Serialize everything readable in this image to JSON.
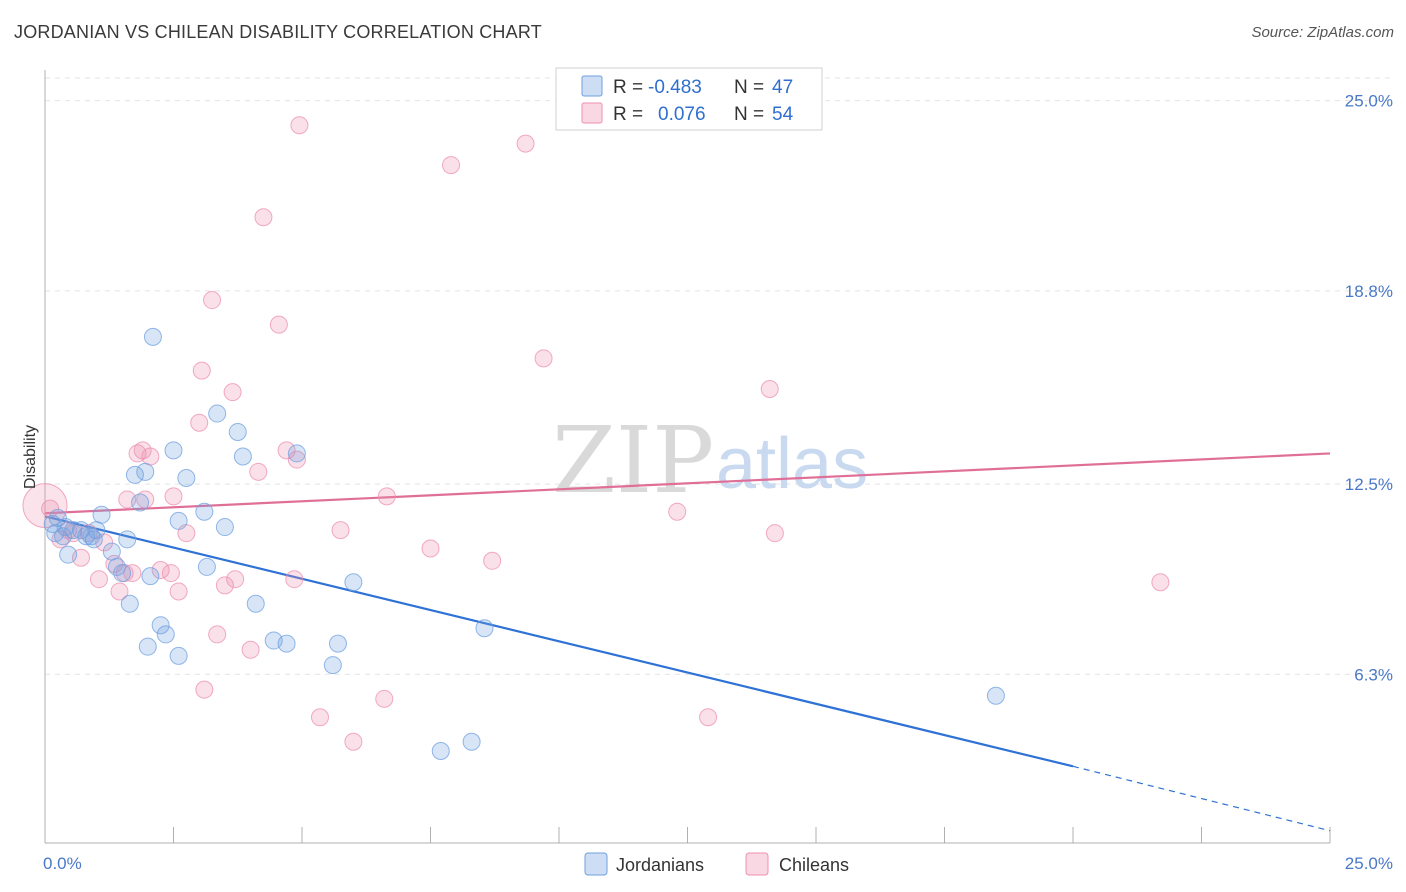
{
  "header": {
    "title": "JORDANIAN VS CHILEAN DISABILITY CORRELATION CHART",
    "source": "Source: ZipAtlas.com"
  },
  "watermark": {
    "zip": "ZIP",
    "atlas": "atlas"
  },
  "legend": {
    "rows": [
      {
        "r_label": "R =",
        "r_value": "-0.483",
        "n_label": "N =",
        "n_value": "47",
        "color": "#6fa0e0"
      },
      {
        "r_label": "R =",
        "r_value": "0.076",
        "n_label": "N =",
        "n_value": "54",
        "color": "#ee8fb0"
      }
    ]
  },
  "bottom_legend": {
    "items": [
      {
        "label": "Jordanians",
        "color": "#6fa0e0"
      },
      {
        "label": "Chileans",
        "color": "#ee8fb0"
      }
    ]
  },
  "chart_data": {
    "type": "scatter",
    "title": "JORDANIAN VS CHILEAN DISABILITY CORRELATION CHART",
    "xlabel": "",
    "ylabel": "Disability",
    "xlim": [
      0,
      25
    ],
    "ylim": [
      0.8,
      26
    ],
    "x_tick_labels": [
      "0.0%",
      "25.0%"
    ],
    "y_ticks": [
      6.3,
      12.5,
      18.8,
      25.0
    ],
    "y_tick_labels": [
      "6.3%",
      "12.5%",
      "18.8%",
      "25.0%"
    ],
    "grid": "horizontal dashed",
    "legend_position": "top-center",
    "series": [
      {
        "name": "Jordanians",
        "color": "#6fa0e0",
        "r": -0.483,
        "n": 47,
        "trend": {
          "x": [
            0,
            20,
            25
          ],
          "y": [
            11.45,
            3.3,
            1.2
          ],
          "dashed_from": 20
        },
        "points": [
          [
            0.15,
            11.2
          ],
          [
            0.2,
            10.9
          ],
          [
            0.25,
            11.4
          ],
          [
            0.35,
            10.8
          ],
          [
            0.4,
            11.1
          ],
          [
            0.45,
            10.2
          ],
          [
            0.55,
            11.0
          ],
          [
            0.7,
            11.0
          ],
          [
            0.8,
            10.8
          ],
          [
            0.9,
            10.8
          ],
          [
            0.95,
            10.7
          ],
          [
            1.0,
            11.0
          ],
          [
            1.1,
            11.5
          ],
          [
            1.3,
            10.3
          ],
          [
            1.4,
            9.8
          ],
          [
            1.5,
            9.6
          ],
          [
            1.6,
            10.7
          ],
          [
            1.65,
            8.6
          ],
          [
            1.75,
            12.8
          ],
          [
            1.85,
            11.9
          ],
          [
            1.95,
            12.9
          ],
          [
            2.0,
            7.2
          ],
          [
            2.05,
            9.5
          ],
          [
            2.1,
            17.3
          ],
          [
            2.25,
            7.9
          ],
          [
            2.35,
            7.6
          ],
          [
            2.5,
            13.6
          ],
          [
            2.6,
            6.9
          ],
          [
            2.6,
            11.3
          ],
          [
            2.75,
            12.7
          ],
          [
            3.1,
            11.6
          ],
          [
            3.15,
            9.8
          ],
          [
            3.35,
            14.8
          ],
          [
            3.5,
            11.1
          ],
          [
            3.75,
            14.2
          ],
          [
            3.85,
            13.4
          ],
          [
            4.1,
            8.6
          ],
          [
            4.45,
            7.4
          ],
          [
            4.7,
            7.3
          ],
          [
            4.9,
            13.5
          ],
          [
            5.6,
            6.6
          ],
          [
            5.7,
            7.3
          ],
          [
            6.0,
            9.3
          ],
          [
            7.7,
            3.8
          ],
          [
            8.3,
            4.1
          ],
          [
            8.55,
            7.8
          ],
          [
            18.5,
            5.6
          ]
        ]
      },
      {
        "name": "Chileans",
        "color": "#ee8fb0",
        "r": 0.076,
        "n": 54,
        "trend": {
          "x": [
            0,
            25
          ],
          "y": [
            11.55,
            13.5
          ]
        },
        "points": [
          [
            0.1,
            11.7
          ],
          [
            0.3,
            10.7
          ],
          [
            0.45,
            11.0
          ],
          [
            0.55,
            10.9
          ],
          [
            0.7,
            10.1
          ],
          [
            0.85,
            10.9
          ],
          [
            1.05,
            9.4
          ],
          [
            1.15,
            10.6
          ],
          [
            1.35,
            9.9
          ],
          [
            1.45,
            9.0
          ],
          [
            1.55,
            9.6
          ],
          [
            1.6,
            12.0
          ],
          [
            1.7,
            9.6
          ],
          [
            1.8,
            13.5
          ],
          [
            1.9,
            13.6
          ],
          [
            1.95,
            12.0
          ],
          [
            2.05,
            13.4
          ],
          [
            2.25,
            9.7
          ],
          [
            2.45,
            9.6
          ],
          [
            2.5,
            12.1
          ],
          [
            2.6,
            9.0
          ],
          [
            2.75,
            10.9
          ],
          [
            3.0,
            14.5
          ],
          [
            3.05,
            16.2
          ],
          [
            3.1,
            5.8
          ],
          [
            3.25,
            18.5
          ],
          [
            3.35,
            7.6
          ],
          [
            3.5,
            9.2
          ],
          [
            3.65,
            15.5
          ],
          [
            3.7,
            9.4
          ],
          [
            4.0,
            7.1
          ],
          [
            4.15,
            12.9
          ],
          [
            4.25,
            21.2
          ],
          [
            4.55,
            17.7
          ],
          [
            4.7,
            13.6
          ],
          [
            4.85,
            9.4
          ],
          [
            4.9,
            13.3
          ],
          [
            4.95,
            24.2
          ],
          [
            5.35,
            4.9
          ],
          [
            5.75,
            11.0
          ],
          [
            6.0,
            4.1
          ],
          [
            6.6,
            5.5
          ],
          [
            6.65,
            12.1
          ],
          [
            7.5,
            10.4
          ],
          [
            7.9,
            22.9
          ],
          [
            8.7,
            10.0
          ],
          [
            9.35,
            23.6
          ],
          [
            9.7,
            16.6
          ],
          [
            12.3,
            11.6
          ],
          [
            12.9,
            4.9
          ],
          [
            14.1,
            15.6
          ],
          [
            14.2,
            10.9
          ],
          [
            21.7,
            9.3
          ],
          [
            0.0,
            11.8
          ]
        ]
      }
    ]
  }
}
